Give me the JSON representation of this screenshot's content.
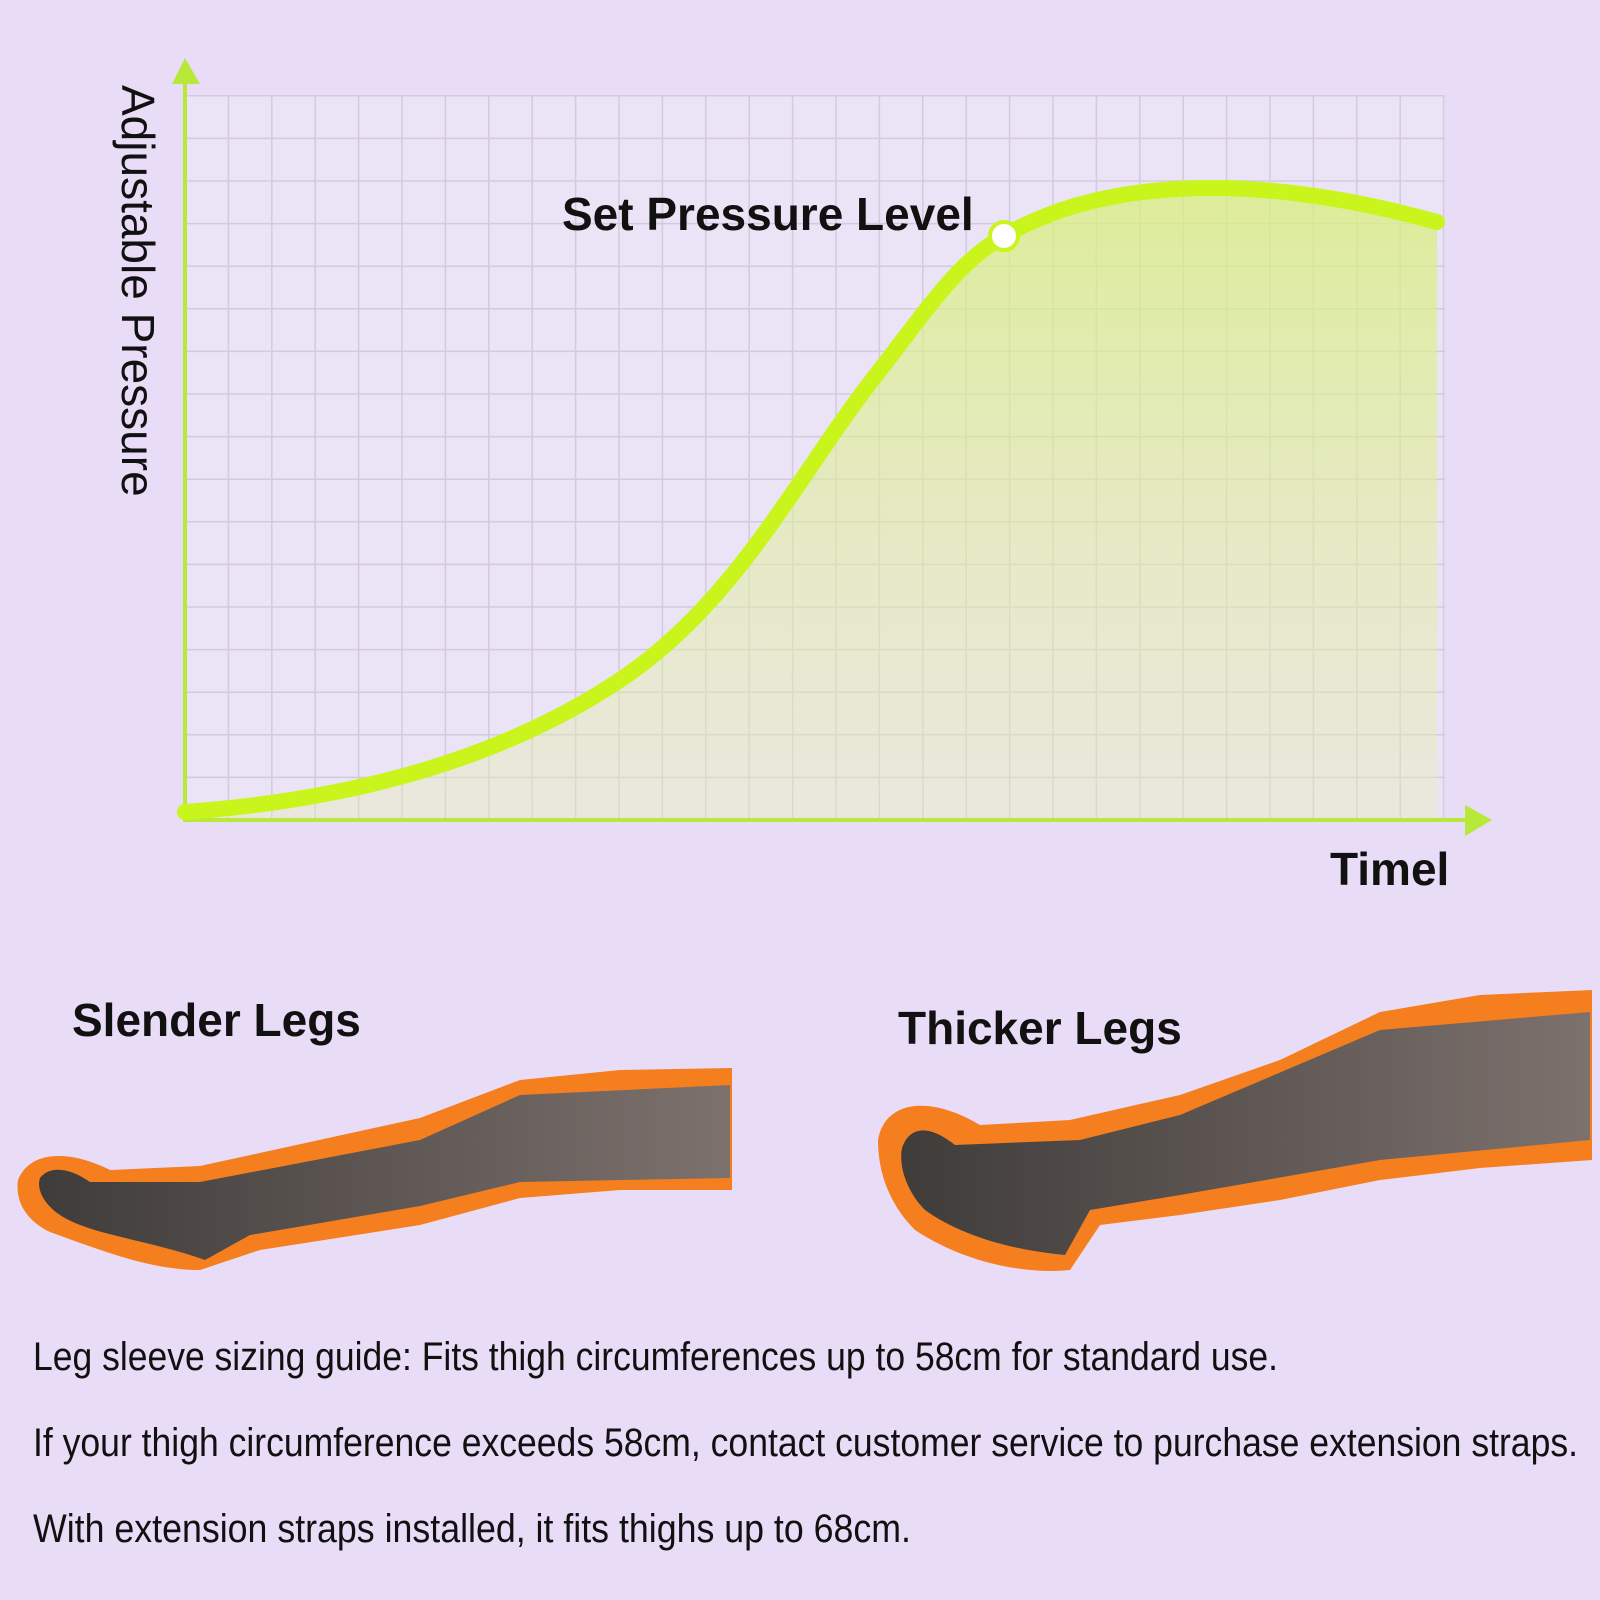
{
  "chart": {
    "y_label": "Adjustable Pressure",
    "x_label": "Timel",
    "annotation": "Set Pressure Level"
  },
  "legs": [
    {
      "label": "Slender Legs"
    },
    {
      "label": "Thicker Legs"
    }
  ],
  "notes": [
    "Leg sleeve sizing guide: Fits thigh circumferences up to 58cm for standard use.",
    "If your thigh circumference exceeds 58cm, contact customer service to purchase extension straps.",
    "With extension straps installed, it fits thighs up to 68cm."
  ]
}
